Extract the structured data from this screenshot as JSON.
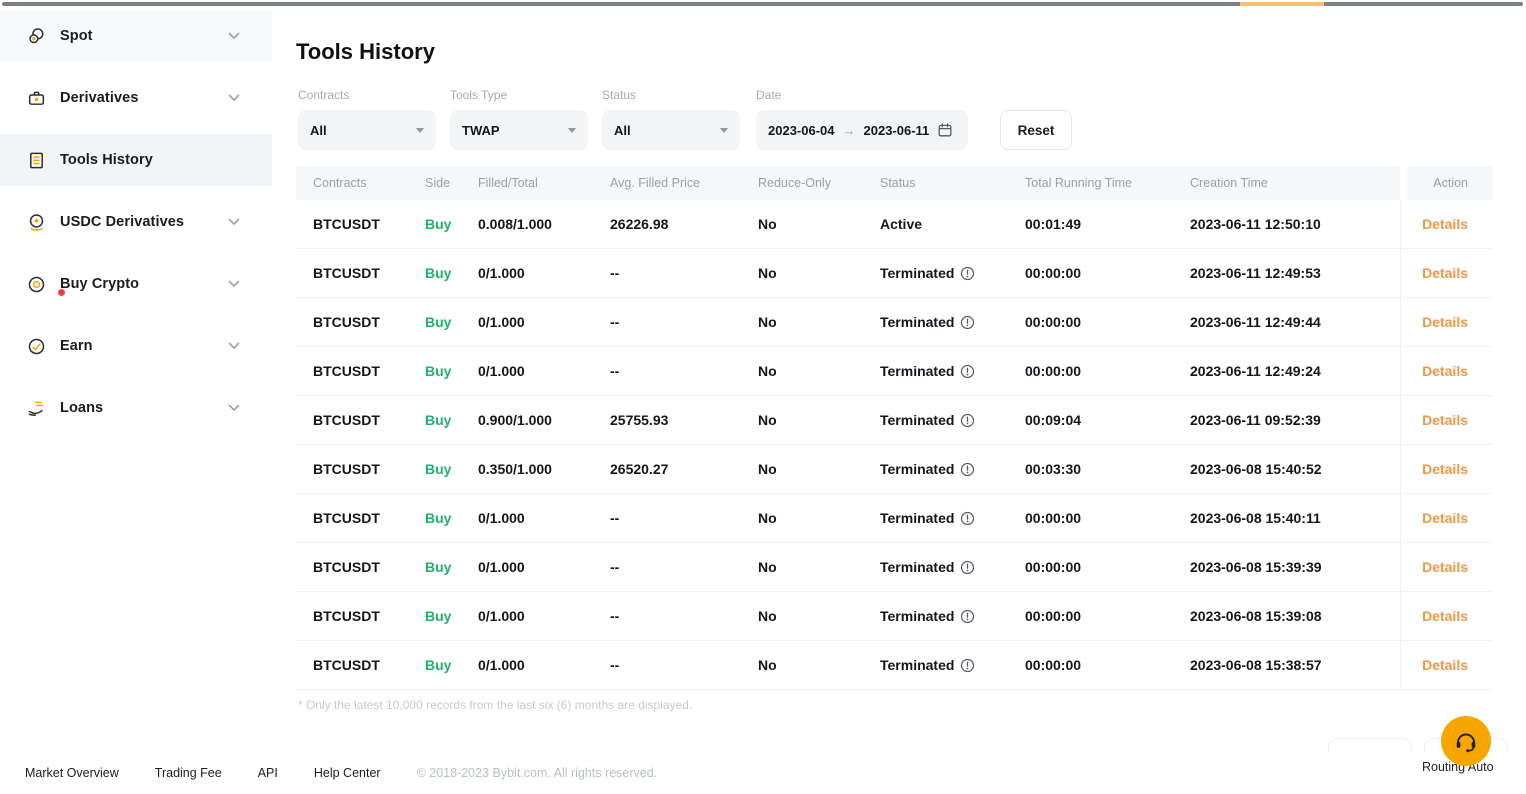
{
  "colors": {
    "brand_orange": "#f7a600",
    "details_orange": "#ef9747",
    "buy_green": "#20b26c",
    "notification_red": "#f53f3f",
    "topbar_accent": "#f8c06a"
  },
  "sidebar": {
    "items": [
      {
        "key": "spot",
        "label": "Spot",
        "icon": "spot-icon",
        "chevron": true,
        "badge": false,
        "bg": "subtle",
        "selected": false
      },
      {
        "key": "derivatives",
        "label": "Derivatives",
        "icon": "derivatives-icon",
        "chevron": true,
        "badge": false,
        "bg": null,
        "selected": false
      },
      {
        "key": "tools-history",
        "label": "Tools History",
        "icon": "tools-history-icon",
        "chevron": false,
        "badge": false,
        "bg": "selected",
        "selected": true
      },
      {
        "key": "usdc-derivatives",
        "label": "USDC Derivatives",
        "icon": "usdc-derivatives-icon",
        "chevron": true,
        "badge": false,
        "bg": null,
        "selected": false
      },
      {
        "key": "buy-crypto",
        "label": "Buy Crypto",
        "icon": "buy-crypto-icon",
        "chevron": true,
        "badge": true,
        "bg": null,
        "selected": false
      },
      {
        "key": "earn",
        "label": "Earn",
        "icon": "earn-icon",
        "chevron": true,
        "badge": false,
        "bg": null,
        "selected": false
      },
      {
        "key": "loans",
        "label": "Loans",
        "icon": "loans-icon",
        "chevron": true,
        "badge": false,
        "bg": null,
        "selected": false
      }
    ]
  },
  "main": {
    "title": "Tools History",
    "filters": {
      "contracts": {
        "label": "Contracts",
        "value": "All"
      },
      "tools_type": {
        "label": "Tools Type",
        "value": "TWAP"
      },
      "status": {
        "label": "Status",
        "value": "All"
      },
      "date": {
        "label": "Date",
        "from": "2023-06-04",
        "arrow": "→",
        "to": "2023-06-11"
      },
      "reset_label": "Reset"
    },
    "table": {
      "columns": [
        "Contracts",
        "Side",
        "Filled/Total",
        "Avg. Filled Price",
        "Reduce-Only",
        "Status",
        "Total Running Time",
        "Creation Time",
        "Action"
      ],
      "action_label": "Details",
      "rows": [
        {
          "contracts": "BTCUSDT",
          "side": "Buy",
          "filled_total": "0.008/1.000",
          "avg_price": "26226.98",
          "reduce_only": "No",
          "status": "Active",
          "status_info": false,
          "running_time": "00:01:49",
          "creation_time": "2023-06-11 12:50:10"
        },
        {
          "contracts": "BTCUSDT",
          "side": "Buy",
          "filled_total": "0/1.000",
          "avg_price": "--",
          "reduce_only": "No",
          "status": "Terminated",
          "status_info": true,
          "running_time": "00:00:00",
          "creation_time": "2023-06-11 12:49:53"
        },
        {
          "contracts": "BTCUSDT",
          "side": "Buy",
          "filled_total": "0/1.000",
          "avg_price": "--",
          "reduce_only": "No",
          "status": "Terminated",
          "status_info": true,
          "running_time": "00:00:00",
          "creation_time": "2023-06-11 12:49:44"
        },
        {
          "contracts": "BTCUSDT",
          "side": "Buy",
          "filled_total": "0/1.000",
          "avg_price": "--",
          "reduce_only": "No",
          "status": "Terminated",
          "status_info": true,
          "running_time": "00:00:00",
          "creation_time": "2023-06-11 12:49:24"
        },
        {
          "contracts": "BTCUSDT",
          "side": "Buy",
          "filled_total": "0.900/1.000",
          "avg_price": "25755.93",
          "reduce_only": "No",
          "status": "Terminated",
          "status_info": true,
          "running_time": "00:09:04",
          "creation_time": "2023-06-11 09:52:39"
        },
        {
          "contracts": "BTCUSDT",
          "side": "Buy",
          "filled_total": "0.350/1.000",
          "avg_price": "26520.27",
          "reduce_only": "No",
          "status": "Terminated",
          "status_info": true,
          "running_time": "00:03:30",
          "creation_time": "2023-06-08 15:40:52"
        },
        {
          "contracts": "BTCUSDT",
          "side": "Buy",
          "filled_total": "0/1.000",
          "avg_price": "--",
          "reduce_only": "No",
          "status": "Terminated",
          "status_info": true,
          "running_time": "00:00:00",
          "creation_time": "2023-06-08 15:40:11"
        },
        {
          "contracts": "BTCUSDT",
          "side": "Buy",
          "filled_total": "0/1.000",
          "avg_price": "--",
          "reduce_only": "No",
          "status": "Terminated",
          "status_info": true,
          "running_time": "00:00:00",
          "creation_time": "2023-06-08 15:39:39"
        },
        {
          "contracts": "BTCUSDT",
          "side": "Buy",
          "filled_total": "0/1.000",
          "avg_price": "--",
          "reduce_only": "No",
          "status": "Terminated",
          "status_info": true,
          "running_time": "00:00:00",
          "creation_time": "2023-06-08 15:39:08"
        },
        {
          "contracts": "BTCUSDT",
          "side": "Buy",
          "filled_total": "0/1.000",
          "avg_price": "--",
          "reduce_only": "No",
          "status": "Terminated",
          "status_info": true,
          "running_time": "00:00:00",
          "creation_time": "2023-06-08 15:38:57"
        }
      ]
    },
    "footnote": "* Only the latest 10,000 records from the last six (6) months are displayed."
  },
  "footer": {
    "links": [
      "Market Overview",
      "Trading Fee",
      "API",
      "Help Center"
    ],
    "copyright": "© 2018-2023 Bybit.com. All rights reserved."
  },
  "floating": {
    "routing_label": "Routing Auto"
  }
}
